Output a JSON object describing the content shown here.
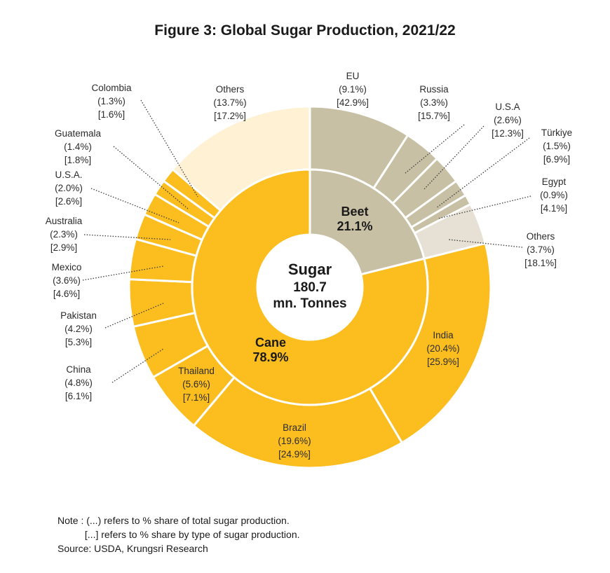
{
  "title": "Figure 3: Global Sugar Production, 2021/22",
  "notes": [
    "Note : (...) refers to % share of total sugar production.",
    "          [...] refers to % share by type of sugar production.",
    "Source: USDA, Krungsri Research"
  ],
  "chart_data": {
    "type": "pie",
    "title": "Figure 3: Global Sugar Production, 2021/22",
    "center_label": [
      "Sugar",
      "180.7",
      "mn. Tonnes"
    ],
    "colors": {
      "cane": "#fcbe1f",
      "beet": "#c8c0a4",
      "cane_others": "#fff1d4",
      "beet_others": "#e6e1d4"
    },
    "inner": [
      {
        "name": "Beet",
        "value": 21.1,
        "label": [
          "Beet",
          "21.1%"
        ]
      },
      {
        "name": "Cane",
        "value": 78.9,
        "label": [
          "Cane",
          "78.9%"
        ]
      }
    ],
    "outer": [
      {
        "name": "EU",
        "group": "Beet",
        "total_share": 9.1,
        "type_share": 42.9,
        "label": [
          "EU",
          "(9.1%)",
          "[42.9%]"
        ]
      },
      {
        "name": "Russia",
        "group": "Beet",
        "total_share": 3.3,
        "type_share": 15.7,
        "label": [
          "Russia",
          "(3.3%)",
          "[15.7%]"
        ]
      },
      {
        "name": "U.S.A",
        "group": "Beet",
        "total_share": 2.6,
        "type_share": 12.3,
        "label": [
          "U.S.A",
          "(2.6%)",
          "[12.3%]"
        ]
      },
      {
        "name": "Türkiye",
        "group": "Beet",
        "total_share": 1.5,
        "type_share": 6.9,
        "label": [
          "Türkiye",
          "(1.5%)",
          "[6.9%]"
        ]
      },
      {
        "name": "Egypt",
        "group": "Beet",
        "total_share": 0.9,
        "type_share": 4.1,
        "label": [
          "Egypt",
          "(0.9%)",
          "[4.1%]"
        ]
      },
      {
        "name": "Others",
        "group": "Beet",
        "total_share": 3.7,
        "type_share": 18.1,
        "label": [
          "Others",
          "(3.7%)",
          "[18.1%]"
        ]
      },
      {
        "name": "India",
        "group": "Cane",
        "total_share": 20.4,
        "type_share": 25.9,
        "label": [
          "India",
          "(20.4%)",
          "[25.9%]"
        ]
      },
      {
        "name": "Brazil",
        "group": "Cane",
        "total_share": 19.6,
        "type_share": 24.9,
        "label": [
          "Brazil",
          "(19.6%)",
          "[24.9%]"
        ]
      },
      {
        "name": "Thailand",
        "group": "Cane",
        "total_share": 5.6,
        "type_share": 7.1,
        "label": [
          "Thailand",
          "(5.6%)",
          "[7.1%]"
        ]
      },
      {
        "name": "China",
        "group": "Cane",
        "total_share": 4.8,
        "type_share": 6.1,
        "label": [
          "China",
          "(4.8%)",
          "[6.1%]"
        ]
      },
      {
        "name": "Pakistan",
        "group": "Cane",
        "total_share": 4.2,
        "type_share": 5.3,
        "label": [
          "Pakistan",
          "(4.2%)",
          "[5.3%]"
        ]
      },
      {
        "name": "Mexico",
        "group": "Cane",
        "total_share": 3.6,
        "type_share": 4.6,
        "label": [
          "Mexico",
          "(3.6%)",
          "[4.6%]"
        ]
      },
      {
        "name": "Australia",
        "group": "Cane",
        "total_share": 2.3,
        "type_share": 2.9,
        "label": [
          "Australia",
          "(2.3%)",
          "[2.9%]"
        ]
      },
      {
        "name": "U.S.A.",
        "group": "Cane",
        "total_share": 2.0,
        "type_share": 2.6,
        "label": [
          "U.S.A.",
          "(2.0%)",
          "[2.6%]"
        ]
      },
      {
        "name": "Guatemala",
        "group": "Cane",
        "total_share": 1.4,
        "type_share": 1.8,
        "label": [
          "Guatemala",
          "(1.4%)",
          "[1.8%]"
        ]
      },
      {
        "name": "Colombia",
        "group": "Cane",
        "total_share": 1.3,
        "type_share": 1.6,
        "label": [
          "Colombia",
          "(1.3%)",
          "[1.6%]"
        ]
      },
      {
        "name": "Others",
        "group": "Cane",
        "total_share": 13.7,
        "type_share": 17.2,
        "label": [
          "Others",
          "(13.7%)",
          "[17.2%]"
        ]
      }
    ]
  }
}
